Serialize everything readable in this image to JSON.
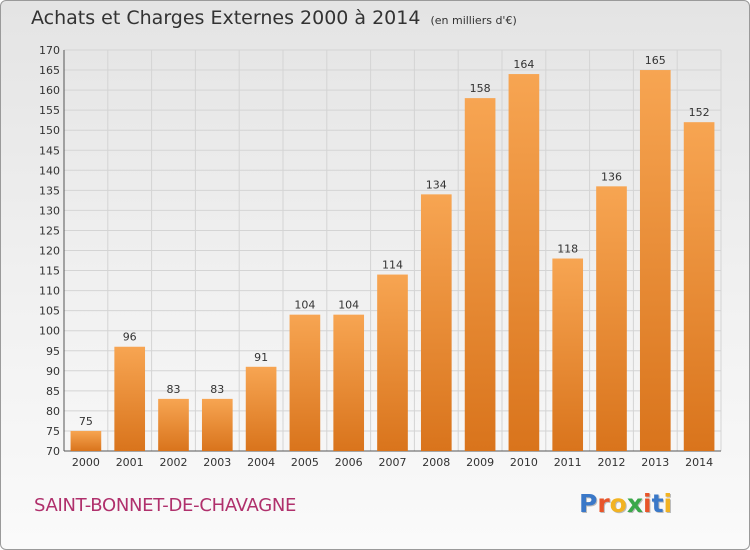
{
  "chart_data": {
    "type": "bar",
    "title": "Achats et Charges Externes 2000 à 2014",
    "subtitle": "(en milliers d'€)",
    "categories": [
      "2000",
      "2001",
      "2002",
      "2003",
      "2004",
      "2005",
      "2006",
      "2007",
      "2008",
      "2009",
      "2010",
      "2011",
      "2012",
      "2013",
      "2014"
    ],
    "values": [
      75,
      96,
      83,
      83,
      91,
      104,
      104,
      114,
      134,
      158,
      164,
      118,
      136,
      165,
      152
    ],
    "ylim": [
      70,
      170
    ],
    "yticks": [
      70,
      75,
      80,
      85,
      90,
      95,
      100,
      105,
      110,
      115,
      120,
      125,
      130,
      135,
      140,
      145,
      150,
      155,
      160,
      165,
      170
    ],
    "grid": true,
    "bar_color": "#f0913a"
  },
  "footer": {
    "commune": "SAINT-BONNET-DE-CHAVAGNE",
    "logo": {
      "letters": [
        "P",
        "r",
        "o",
        "x",
        "i",
        "t",
        "i"
      ],
      "colors": [
        "#3a78c8",
        "#e8552a",
        "#f2b322",
        "#3aa84a",
        "#e8552a",
        "#3a78c8",
        "#f2b322"
      ]
    }
  }
}
